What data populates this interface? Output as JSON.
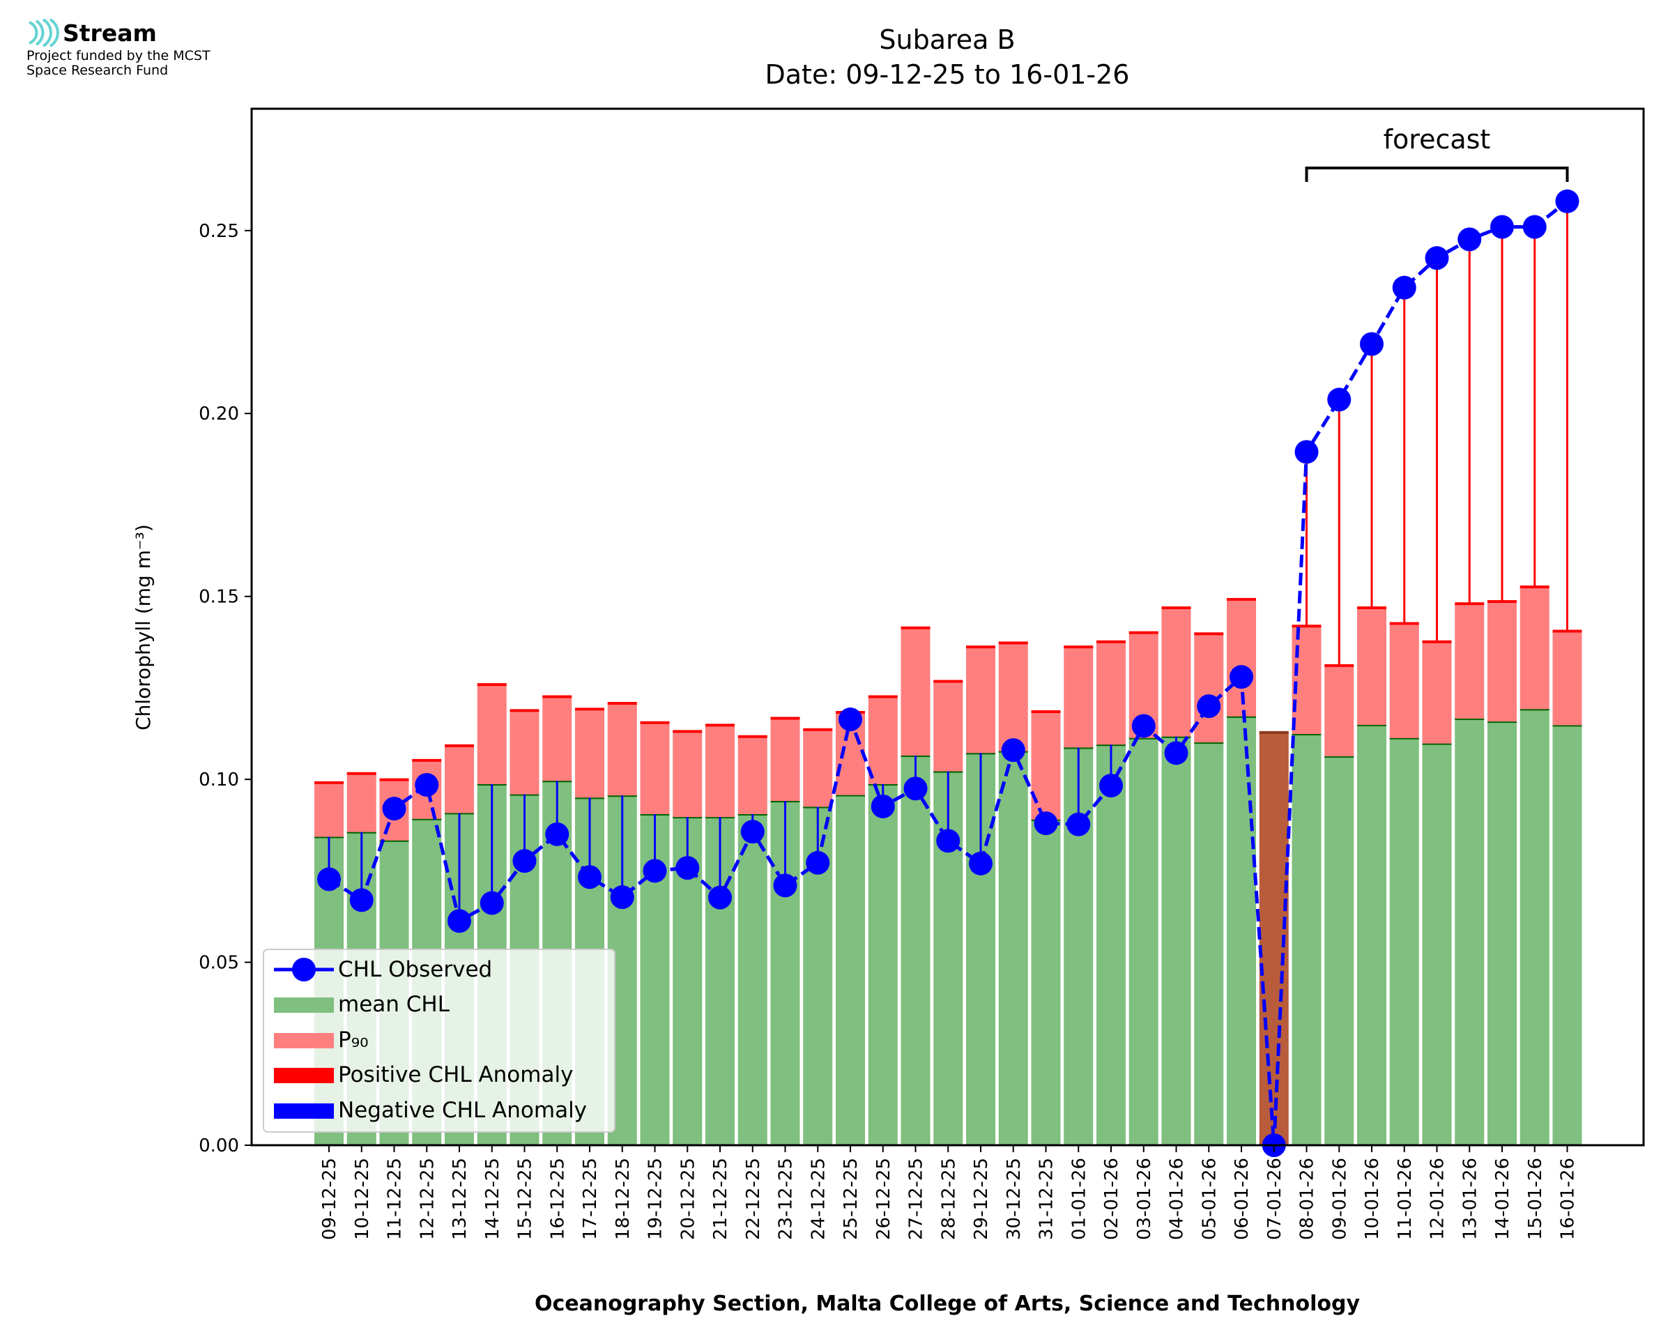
{
  "logo": {
    "name": "Stream",
    "line1": "Project funded by the MCST",
    "line2": "Space Research Fund"
  },
  "chart_data": {
    "type": "bar",
    "title": "Subarea B",
    "subtitle": "Date: 09-12-25 to 16-01-26",
    "xlabel": "Oceanography Section, Malta College of Arts, Science and Technology",
    "ylabel": "Chlorophyll (mg m⁻³)",
    "ylim": [
      0,
      0.2833
    ],
    "yticks": [
      "0.00",
      "0.05",
      "0.10",
      "0.15",
      "0.20",
      "0.25"
    ],
    "ytick_values": [
      0,
      0.05,
      0.1,
      0.15,
      0.2,
      0.25
    ],
    "forecast_label": "forecast",
    "forecast_range": [
      "08-01-26",
      "16-01-26"
    ],
    "categories": [
      "09-12-25",
      "10-12-25",
      "11-12-25",
      "12-12-25",
      "13-12-25",
      "14-12-25",
      "15-12-25",
      "16-12-25",
      "17-12-25",
      "18-12-25",
      "19-12-25",
      "20-12-25",
      "21-12-25",
      "22-12-25",
      "23-12-25",
      "24-12-25",
      "25-12-25",
      "26-12-25",
      "27-12-25",
      "28-12-25",
      "29-12-25",
      "30-12-25",
      "31-12-25",
      "01-01-26",
      "02-01-26",
      "03-01-26",
      "04-01-26",
      "05-01-26",
      "06-01-26",
      "07-01-26",
      "08-01-26",
      "09-01-26",
      "10-01-26",
      "11-01-26",
      "12-01-26",
      "13-01-26",
      "14-01-26",
      "15-01-26",
      "16-01-26"
    ],
    "series": [
      {
        "name": "mean CHL",
        "color": "#7fbf7f",
        "values": [
          0.0843,
          0.0856,
          0.0833,
          0.0892,
          0.0908,
          0.0987,
          0.0959,
          0.0996,
          0.095,
          0.0956,
          0.0905,
          0.0897,
          0.0897,
          0.0905,
          0.0941,
          0.0925,
          0.0957,
          0.0987,
          0.1065,
          0.1022,
          0.1072,
          0.1077,
          0.089,
          0.1087,
          0.1095,
          0.1113,
          0.1117,
          0.1101,
          0.1172,
          0.1128,
          0.1124,
          0.1063,
          0.1149,
          0.1113,
          0.1098,
          0.1166,
          0.1158,
          0.1192,
          0.1148
        ]
      },
      {
        "name": "P₉₀",
        "color": "#ff7f7f",
        "values": [
          0.0991,
          0.1016,
          0.0999,
          0.1052,
          0.1092,
          0.1259,
          0.1188,
          0.1226,
          0.1192,
          0.1208,
          0.1155,
          0.1131,
          0.1148,
          0.1117,
          0.1167,
          0.1136,
          0.1183,
          0.1226,
          0.1414,
          0.1268,
          0.1362,
          0.1373,
          0.1185,
          0.1362,
          0.1376,
          0.1401,
          0.1469,
          0.1398,
          0.1492,
          0.1128,
          0.1419,
          0.1311,
          0.1469,
          0.1426,
          0.1376,
          0.148,
          0.1486,
          0.1526,
          0.1405
        ]
      },
      {
        "name": "CHL Observed",
        "color": "#0000ff",
        "values": [
          0.0727,
          0.067,
          0.092,
          0.0985,
          0.0613,
          0.0662,
          0.0777,
          0.085,
          0.0733,
          0.0678,
          0.075,
          0.0758,
          0.0677,
          0.0857,
          0.071,
          0.0772,
          0.1164,
          0.0926,
          0.0975,
          0.0832,
          0.077,
          0.108,
          0.088,
          0.0877,
          0.0983,
          0.1146,
          0.1072,
          0.12,
          0.128,
          0.0,
          0.1895,
          0.2038,
          0.219,
          0.2344,
          0.2425,
          0.2476,
          0.251,
          0.251,
          0.258
        ]
      }
    ],
    "legend": {
      "position": "lower-left",
      "entries": [
        "CHL Observed",
        "mean CHL",
        "P₉₀",
        "Positive CHL Anomaly",
        "Negative CHL Anomaly"
      ]
    },
    "colors": {
      "observed": "#0000ff",
      "mean": "#7fbf7f",
      "p90": "#ff7f7f",
      "positive_anomaly": "#ff0000",
      "negative_anomaly": "#0000ff",
      "mean_edge": "#006400",
      "missing_bar": "#b85c3c",
      "missing_edge": "#8b3a1f",
      "logo_accent": "#64d2d2"
    }
  }
}
